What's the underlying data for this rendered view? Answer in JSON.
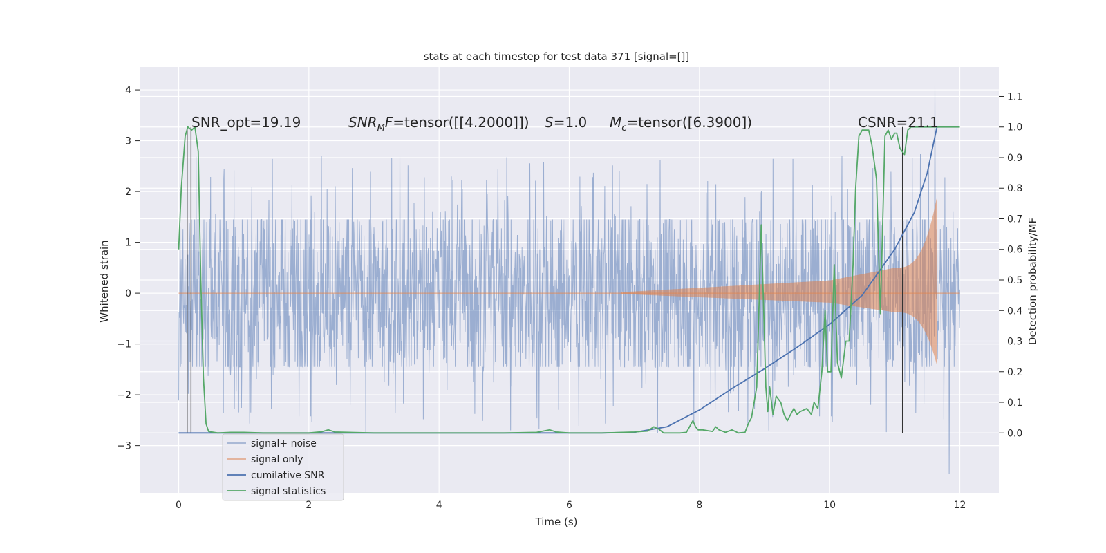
{
  "chart_data": {
    "type": "line",
    "title": "stats at each timestep for test data 371 [signal=[]]",
    "xlabel": "Time (s)",
    "ylabel": "Whitened strain",
    "y2label": "Detection probability/MF",
    "xlim": [
      -0.6,
      12.6
    ],
    "ylim": [
      -3.93,
      4.45
    ],
    "y2lim": [
      -0.196,
      1.196
    ],
    "xticks": [
      0,
      2,
      4,
      6,
      8,
      10,
      12
    ],
    "xtick_labels": [
      "0",
      "2",
      "4",
      "6",
      "8",
      "10",
      "12"
    ],
    "yticks": [
      -3,
      -2,
      -1,
      0,
      1,
      2,
      3,
      4
    ],
    "ytick_labels": [
      "−3",
      "−2",
      "−1",
      "0",
      "1",
      "2",
      "3",
      "4"
    ],
    "y2ticks": [
      0.0,
      0.1,
      0.2,
      0.3,
      0.4,
      0.5,
      0.6,
      0.7,
      0.8,
      0.9,
      1.0,
      1.1
    ],
    "y2tick_labels": [
      "0.0",
      "0.1",
      "0.2",
      "0.3",
      "0.4",
      "0.5",
      "0.6",
      "0.7",
      "0.8",
      "0.9",
      "1.0",
      "1.1"
    ],
    "grid": true,
    "legend_position": "lower-left",
    "annotations": [
      {
        "id": "snr-opt",
        "text": "SNR_opt=19.19"
      },
      {
        "id": "snr-mf-label",
        "text": "SNR"
      },
      {
        "id": "snr-mf-sub",
        "text": "M"
      },
      {
        "id": "snr-mf-f",
        "text": "F"
      },
      {
        "id": "snr-mf-value",
        "text": "=tensor([[4.2000]])"
      },
      {
        "id": "s-label",
        "text": "S"
      },
      {
        "id": "s-value",
        "text": "=1.0"
      },
      {
        "id": "mc-label",
        "text": "M"
      },
      {
        "id": "mc-sub",
        "text": "c"
      },
      {
        "id": "mc-value",
        "text": "=tensor([6.3900])"
      },
      {
        "id": "csnr",
        "text": "CSNR=21.1"
      }
    ],
    "vlines_x": [
      0.13,
      0.19,
      11.12
    ],
    "series": [
      {
        "name": "signal+ noise",
        "axis": "left",
        "color": "#4c72b0",
        "t_end": 12.0,
        "envelope": 1.45,
        "peak_max": 4.08,
        "peak_min": -3.55
      },
      {
        "name": "signal only",
        "axis": "left",
        "color": "#dd8452",
        "t_start": 6.8,
        "t_merger": 11.65,
        "amp_at_start": 0.02,
        "amp_at_10": 0.25,
        "amp_at_11": 0.5,
        "amp_max": 1.9
      },
      {
        "name": "cumilative SNR",
        "axis": "right",
        "color": "#4c72b0",
        "x": [
          0,
          6.5,
          7.0,
          7.5,
          8.0,
          8.5,
          9.0,
          9.5,
          10.0,
          10.5,
          11.0,
          11.3,
          11.5,
          11.65
        ],
        "y": [
          0.0,
          0.0,
          0.002,
          0.02,
          0.075,
          0.145,
          0.21,
          0.28,
          0.355,
          0.45,
          0.6,
          0.72,
          0.85,
          1.0
        ]
      },
      {
        "name": "signal statistics",
        "axis": "right",
        "color": "#55a868",
        "x": [
          0,
          0.04,
          0.1,
          0.14,
          0.2,
          0.25,
          0.3,
          0.34,
          0.38,
          0.42,
          0.46,
          0.6,
          0.8,
          1.0,
          1.3,
          1.6,
          2.0,
          2.2,
          2.3,
          2.4,
          3.0,
          3.5,
          4.0,
          4.5,
          5.0,
          5.5,
          5.7,
          5.8,
          6.0,
          6.5,
          7.0,
          7.2,
          7.3,
          7.38,
          7.45,
          7.5,
          7.7,
          7.8,
          7.9,
          7.94,
          7.98,
          8.05,
          8.2,
          8.25,
          8.3,
          8.4,
          8.5,
          8.6,
          8.7,
          8.75,
          8.8,
          8.88,
          8.95,
          9.02,
          9.05,
          9.08,
          9.13,
          9.18,
          9.25,
          9.3,
          9.35,
          9.45,
          9.5,
          9.55,
          9.65,
          9.72,
          9.76,
          9.82,
          9.88,
          9.93,
          9.97,
          10.02,
          10.07,
          10.12,
          10.18,
          10.25,
          10.3,
          10.36,
          10.4,
          10.45,
          10.5,
          10.55,
          10.6,
          10.65,
          10.72,
          10.78,
          10.85,
          10.9,
          10.95,
          11.0,
          11.03,
          11.08,
          11.15,
          11.2,
          11.25,
          11.35,
          11.5,
          11.62,
          11.65,
          12.0
        ],
        "y": [
          0.6,
          0.8,
          0.97,
          1.0,
          0.99,
          1.0,
          0.92,
          0.5,
          0.18,
          0.03,
          0.005,
          0.0,
          0.002,
          0.002,
          0.0,
          0.0,
          0.0,
          0.004,
          0.01,
          0.003,
          0.0,
          0.0,
          0.0,
          0.0,
          0.0,
          0.002,
          0.01,
          0.003,
          0.0,
          0.0,
          0.003,
          0.006,
          0.02,
          0.012,
          0.0,
          0.0,
          0.0,
          0.002,
          0.04,
          0.02,
          0.01,
          0.01,
          0.005,
          0.02,
          0.01,
          0.002,
          0.01,
          0.0,
          0.002,
          0.03,
          0.05,
          0.15,
          0.68,
          0.15,
          0.07,
          0.15,
          0.06,
          0.12,
          0.1,
          0.06,
          0.04,
          0.08,
          0.06,
          0.07,
          0.08,
          0.06,
          0.1,
          0.08,
          0.2,
          0.4,
          0.2,
          0.2,
          0.55,
          0.23,
          0.18,
          0.3,
          0.3,
          0.55,
          0.8,
          0.97,
          0.99,
          0.99,
          0.99,
          0.94,
          0.83,
          0.39,
          0.97,
          0.99,
          0.96,
          0.98,
          0.98,
          0.93,
          0.91,
          0.99,
          1.0,
          1.0,
          1.0,
          1.0,
          1.0,
          1.0
        ]
      }
    ]
  }
}
